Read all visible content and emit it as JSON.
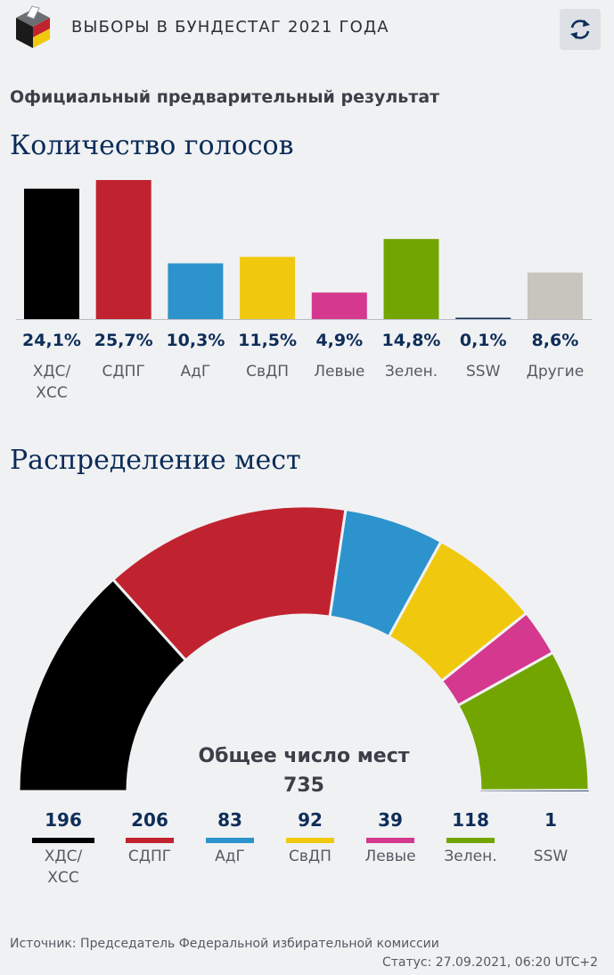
{
  "header": {
    "title": "ВЫБОРЫ В БУНДЕСТАГ 2021 ГОДА",
    "logo_icon": "ballot-box-icon",
    "refresh_icon": "refresh-icon"
  },
  "subtitle": "Официальный предварительный результат",
  "votes_section_title": "Количество голосов",
  "seats_section_title": "Распределение мест",
  "chart_data": [
    {
      "type": "bar",
      "categories": [
        "ХДС/\nХСС",
        "СДПГ",
        "АдГ",
        "СвДП",
        "Левые",
        "Зелен.",
        "SSW",
        "Другие"
      ],
      "values": [
        24.1,
        25.7,
        10.3,
        11.5,
        4.9,
        14.8,
        0.1,
        8.6
      ],
      "value_labels": [
        "24,1%",
        "25,7%",
        "10,3%",
        "11,5%",
        "4,9%",
        "14,8%",
        "0,1%",
        "8,6%"
      ],
      "colors": [
        "#000000",
        "#c0232f",
        "#2d93cc",
        "#f0c90f",
        "#d4388f",
        "#72a500",
        "#0e2d59",
        "#c8c5be"
      ],
      "title": "Количество голосов",
      "xlabel": "",
      "ylabel": "",
      "ylim": [
        0,
        25.7
      ],
      "grid": false
    },
    {
      "type": "pie",
      "variant": "half-donut",
      "categories": [
        "ХДС/\nХСС",
        "СДПГ",
        "АдГ",
        "СвДП",
        "Левые",
        "Зелен.",
        "SSW"
      ],
      "values": [
        196,
        206,
        83,
        92,
        39,
        118,
        1
      ],
      "value_labels": [
        "196",
        "206",
        "83",
        "92",
        "39",
        "118",
        "1"
      ],
      "colors": [
        "#000000",
        "#c0232f",
        "#2d93cc",
        "#f0c90f",
        "#d4388f",
        "#72a500",
        "#0e2d59"
      ],
      "arc_order": [
        0,
        1,
        2,
        3,
        4,
        5
      ],
      "title": "Распределение мест",
      "total_label": "Общее число мест",
      "total_value": "735"
    }
  ],
  "footer": {
    "source": "Источник: Председатель Федеральной избирательной комиссии",
    "status": "Статус: 27.09.2021, 06:20 UTC+2"
  }
}
